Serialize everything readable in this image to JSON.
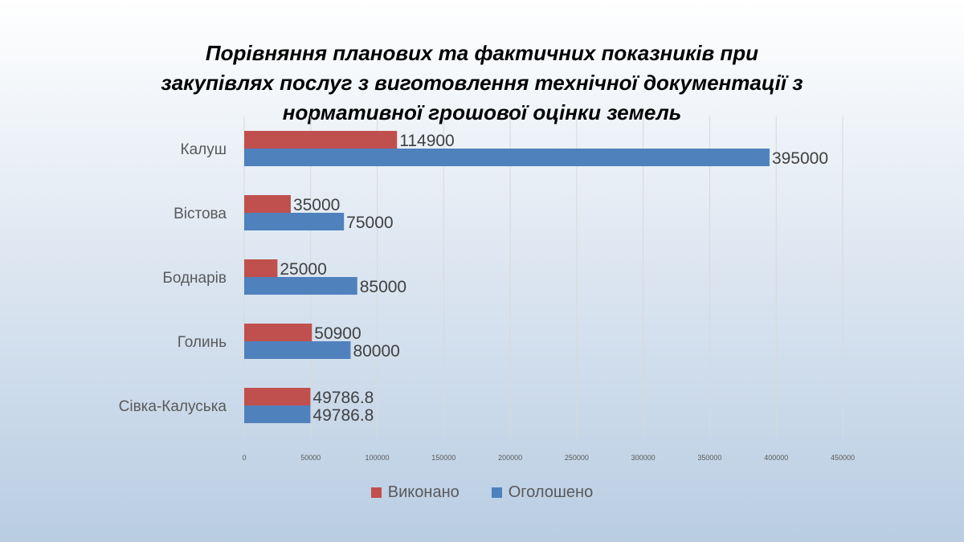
{
  "chart_data": {
    "type": "bar",
    "orientation": "horizontal",
    "title_lines": [
      "Порівняння планових та фактичних показників при",
      "закупівлях послуг з виготовлення технічної документації з",
      "нормативної грошової оцінки земель"
    ],
    "categories": [
      "Калуш",
      "Вістова",
      "Боднарів",
      "Голинь",
      "Сівка-Калуська"
    ],
    "series": [
      {
        "name": "Виконано",
        "color": "#c0504d",
        "values": [
          114900,
          35000,
          25000,
          50900,
          49786.8
        ]
      },
      {
        "name": "Оголошено",
        "color": "#4f81bd",
        "values": [
          395000,
          75000,
          85000,
          80000,
          49786.8
        ]
      }
    ],
    "x_ticks": [
      "0",
      "50000",
      "100000",
      "150000",
      "200000",
      "250000",
      "300000",
      "350000",
      "400000",
      "450000"
    ],
    "xlim": [
      0,
      450000
    ],
    "grid": true,
    "legend_position": "bottom",
    "xlabel": "",
    "ylabel": ""
  }
}
